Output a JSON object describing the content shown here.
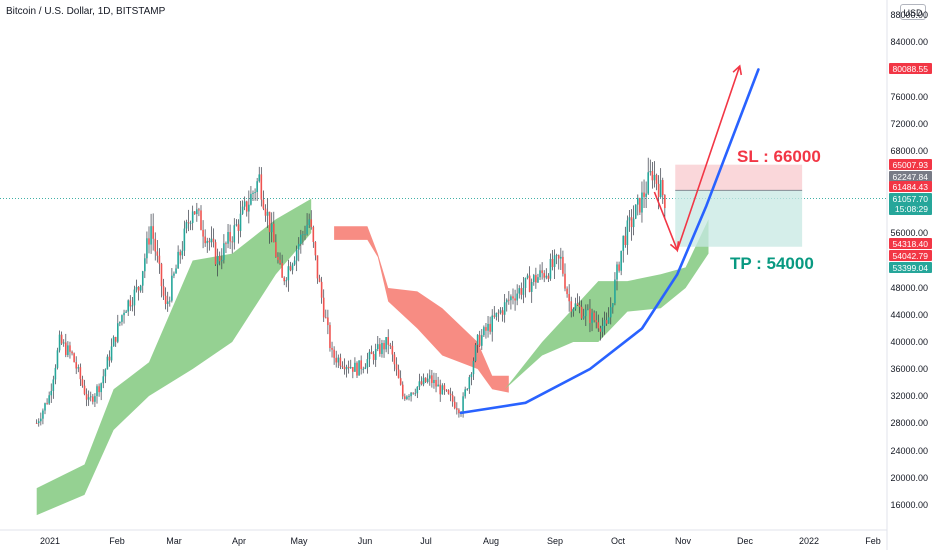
{
  "header": {
    "title": "Bitcoin / U.S. Dollar, 1D, BITSTAMP",
    "currency_button": "USD"
  },
  "annotations": {
    "sl_label": "SL : 66000",
    "tp_label": "TP : 54000"
  },
  "colors": {
    "up_candle": "#26a69a",
    "down_candle": "#ef5350",
    "candle_dark": "#363a45",
    "cloud_bull": "#8fcf8c",
    "cloud_bear": "#f7867c",
    "trend_curve": "#2962ff",
    "projection_arrow": "#f23645",
    "sl_text": "#f23645",
    "tp_text": "#089981",
    "stop_zone": "#f8c9cd",
    "target_zone": "#c7e8e3"
  },
  "chart_data": {
    "type": "candlestick",
    "title": "Bitcoin / U.S. Dollar, 1D, BITSTAMP",
    "x_tick_labels": [
      "2021",
      "Feb",
      "Mar",
      "Apr",
      "May",
      "Jun",
      "Jul",
      "Aug",
      "Sep",
      "Oct",
      "Nov",
      "Dec",
      "2022",
      "Feb"
    ],
    "y_tick_labels": [
      "88000.00",
      "84000.00",
      "76000.00",
      "72000.00",
      "68000.00",
      "56000.00",
      "48000.00",
      "44000.00",
      "40000.00",
      "36000.00",
      "32000.00",
      "28000.00",
      "24000.00",
      "20000.00",
      "16000.00"
    ],
    "y_axis_unit": "USD",
    "ylim": [
      13000,
      90000
    ],
    "price_path": [
      [
        "2020-12-28",
        28000
      ],
      [
        "2021-01-03",
        32000
      ],
      [
        "2021-01-08",
        40000
      ],
      [
        "2021-01-14",
        38000
      ],
      [
        "2021-01-22",
        31000
      ],
      [
        "2021-01-28",
        34000
      ],
      [
        "2021-02-08",
        45000
      ],
      [
        "2021-02-15",
        48000
      ],
      [
        "2021-02-21",
        57000
      ],
      [
        "2021-02-28",
        45000
      ],
      [
        "2021-03-13",
        60000
      ],
      [
        "2021-03-25",
        52000
      ],
      [
        "2021-04-05",
        58000
      ],
      [
        "2021-04-14",
        64000
      ],
      [
        "2021-04-25",
        49000
      ],
      [
        "2021-05-08",
        58000
      ],
      [
        "2021-05-12",
        50000
      ],
      [
        "2021-05-19",
        38000
      ],
      [
        "2021-05-31",
        36000
      ],
      [
        "2021-06-15",
        40000
      ],
      [
        "2021-06-22",
        32000
      ],
      [
        "2021-07-05",
        34500
      ],
      [
        "2021-07-20",
        30000
      ],
      [
        "2021-07-28",
        40000
      ],
      [
        "2021-08-14",
        47000
      ],
      [
        "2021-09-06",
        52000
      ],
      [
        "2021-09-10",
        46000
      ],
      [
        "2021-09-28",
        42000
      ],
      [
        "2021-10-06",
        55000
      ],
      [
        "2021-10-15",
        61000
      ],
      [
        "2021-10-20",
        65000
      ],
      [
        "2021-10-26",
        61000
      ]
    ],
    "cloud_segments": [
      {
        "color": "bull",
        "upper": [
          [
            "2020-12-28",
            18500
          ],
          [
            "2021-01-20",
            22000
          ],
          [
            "2021-02-03",
            33000
          ],
          [
            "2021-02-20",
            37000
          ],
          [
            "2021-03-13",
            52000
          ],
          [
            "2021-04-01",
            53000
          ],
          [
            "2021-04-22",
            58000
          ],
          [
            "2021-05-09",
            61000
          ]
        ],
        "lower": [
          [
            "2020-12-28",
            14500
          ],
          [
            "2021-01-20",
            17500
          ],
          [
            "2021-02-03",
            27000
          ],
          [
            "2021-02-20",
            32000
          ],
          [
            "2021-03-13",
            36000
          ],
          [
            "2021-04-01",
            40000
          ],
          [
            "2021-04-22",
            50000
          ],
          [
            "2021-05-09",
            56000
          ]
        ]
      },
      {
        "color": "bear",
        "upper": [
          [
            "2021-05-20",
            57000
          ],
          [
            "2021-06-05",
            57000
          ],
          [
            "2021-06-10",
            53000
          ],
          [
            "2021-06-15",
            48000
          ],
          [
            "2021-06-29",
            47500
          ],
          [
            "2021-07-11",
            45000
          ],
          [
            "2021-07-28",
            40000
          ],
          [
            "2021-08-04",
            35000
          ],
          [
            "2021-08-12",
            35000
          ]
        ],
        "lower": [
          [
            "2021-05-20",
            55000
          ],
          [
            "2021-06-05",
            55000
          ],
          [
            "2021-06-10",
            52500
          ],
          [
            "2021-06-15",
            46000
          ],
          [
            "2021-06-29",
            42000
          ],
          [
            "2021-07-11",
            38000
          ],
          [
            "2021-07-28",
            36000
          ],
          [
            "2021-08-04",
            33000
          ],
          [
            "2021-08-12",
            32500
          ]
        ]
      },
      {
        "color": "bull",
        "upper": [
          [
            "2021-08-10",
            33000
          ],
          [
            "2021-08-28",
            40000
          ],
          [
            "2021-09-12",
            45000
          ],
          [
            "2021-09-24",
            49000
          ],
          [
            "2021-10-08",
            49000
          ],
          [
            "2021-10-24",
            50000
          ],
          [
            "2021-11-05",
            51000
          ],
          [
            "2021-11-16",
            58000
          ]
        ],
        "lower": [
          [
            "2021-08-10",
            33000
          ],
          [
            "2021-08-28",
            38000
          ],
          [
            "2021-09-12",
            40000
          ],
          [
            "2021-09-24",
            40000
          ],
          [
            "2021-10-08",
            44500
          ],
          [
            "2021-10-24",
            45000
          ],
          [
            "2021-11-05",
            48000
          ],
          [
            "2021-11-16",
            53000
          ]
        ]
      }
    ],
    "trend_curve": [
      [
        "2021-07-20",
        29500
      ],
      [
        "2021-08-20",
        31000
      ],
      [
        "2021-09-20",
        36000
      ],
      [
        "2021-10-15",
        42000
      ],
      [
        "2021-11-01",
        50000
      ],
      [
        "2021-11-15",
        60000
      ],
      [
        "2021-11-30",
        72000
      ],
      [
        "2021-12-10",
        80000
      ]
    ],
    "projection_arrow": [
      [
        "2021-10-21",
        62000
      ],
      [
        "2021-11-01",
        53500
      ],
      [
        "2021-12-01",
        80500
      ]
    ],
    "trade_zone": {
      "entry": 62247.84,
      "stop": 66000,
      "target": 54000,
      "from": "2021-10-31",
      "to": "2021-12-31"
    },
    "current_price_line": 61057.7,
    "price_labels": [
      {
        "value": "80088.55",
        "kind": "red"
      },
      {
        "value": "65007.93",
        "kind": "red"
      },
      {
        "value": "62247.84",
        "kind": "grey"
      },
      {
        "value": "61484.43",
        "kind": "red"
      },
      {
        "value": "61057.70",
        "kind": "teal",
        "sub": "15:08:29"
      },
      {
        "value": "54318.40",
        "kind": "red"
      },
      {
        "value": "54042.79",
        "kind": "red"
      },
      {
        "value": "53399.04",
        "kind": "teal"
      }
    ]
  }
}
